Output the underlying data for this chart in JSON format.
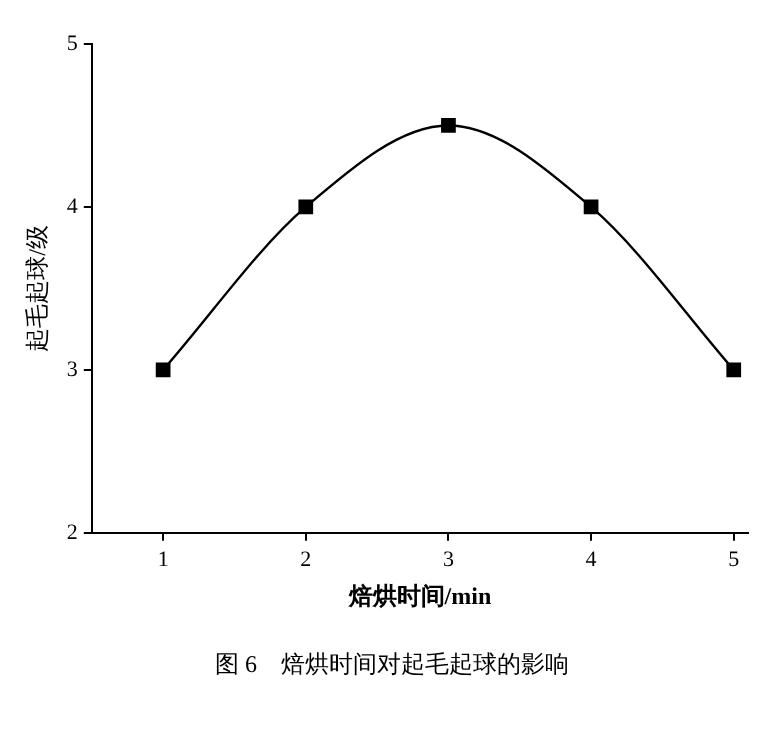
{
  "chart_data": {
    "type": "line",
    "xlabel": "焙烘时间/min",
    "ylabel": "起毛起球/级",
    "x": [
      1,
      2,
      3,
      4,
      5
    ],
    "series": [
      {
        "color": "#000000",
        "values": [
          3,
          4,
          4.5,
          4,
          3
        ]
      }
    ],
    "xlim": [
      0.5,
      5.1
    ],
    "xticks": [
      1,
      2,
      3,
      4,
      5
    ],
    "ylim": [
      2,
      5
    ],
    "yticks": [
      2,
      3,
      4,
      5
    ],
    "grid": false,
    "legend": false,
    "marker": "square",
    "line_style": "solid",
    "annotations": [
      "图 6　焙烘时间对起毛起球的影响"
    ]
  }
}
